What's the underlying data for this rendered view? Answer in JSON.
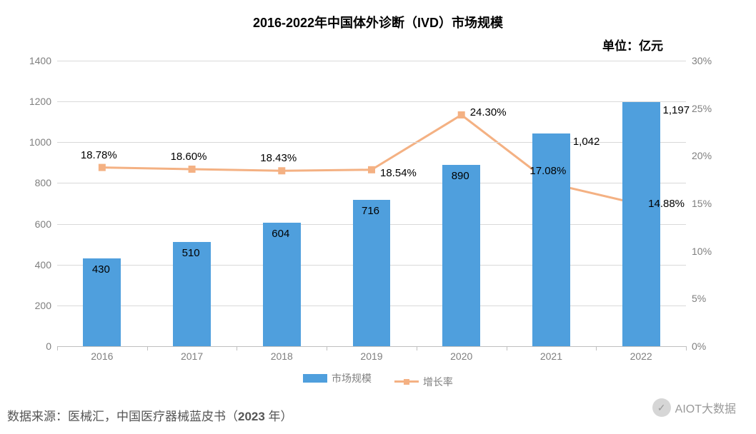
{
  "chart": {
    "title": "2016-2022年中国体外诊断（IVD）市场规模",
    "title_fontsize": 18,
    "unit_label": "单位：亿元",
    "unit_fontsize": 17,
    "background_color": "#ffffff",
    "grid_color": "#d9d9d9",
    "axis_line_color": "#bfbfbf",
    "tick_label_color": "#7f7f7f",
    "categories": [
      "2016",
      "2017",
      "2018",
      "2019",
      "2020",
      "2021",
      "2022"
    ],
    "bar_series": {
      "name": "市场规模",
      "color": "#4f9fdd",
      "values": [
        430,
        510,
        604,
        716,
        890,
        1042,
        1197
      ],
      "value_labels": [
        "430",
        "510",
        "604",
        "716",
        "890",
        "1,042",
        "1,197"
      ],
      "bar_width_ratio": 0.42,
      "label_fontsize": 15,
      "label_color": "#000000"
    },
    "line_series": {
      "name": "增长率",
      "line_color": "#f4b183",
      "marker_color": "#f4b183",
      "marker_size": 10,
      "line_width": 3,
      "values": [
        18.78,
        18.6,
        18.43,
        18.54,
        24.3,
        17.08,
        14.88
      ],
      "value_labels": [
        "18.78%",
        "18.60%",
        "18.43%",
        "18.54%",
        "24.30%",
        "17.08%",
        "14.88%"
      ],
      "label_fontsize": 15,
      "label_color": "#000000"
    },
    "y_left": {
      "min": 0,
      "max": 1400,
      "step": 200
    },
    "y_right": {
      "min": 0,
      "max": 30,
      "step": 5,
      "suffix": "%"
    },
    "legend": {
      "items": [
        "市场规模",
        "增长率"
      ],
      "text_color": "#7f7f7f",
      "fontsize": 14
    }
  },
  "source": {
    "prefix": "数据来源：医械汇，中国医疗器械蓝皮书（",
    "strong": "2023",
    "suffix": " 年）",
    "fontsize": 17,
    "color": "#555555"
  },
  "watermark": {
    "text": "AIOT大数据",
    "icon_glyph": "✓",
    "color": "#888888"
  }
}
